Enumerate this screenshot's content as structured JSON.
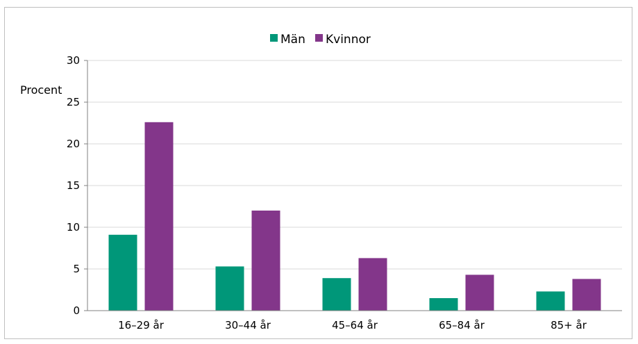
{
  "chart_data": {
    "type": "bar",
    "title": "",
    "xlabel": "",
    "ylabel": "Procent",
    "categories": [
      "16–29 år",
      "30–44 år",
      "45–64 år",
      "65–84 år",
      "85+ år"
    ],
    "series": [
      {
        "name": "Män",
        "color": "#009779",
        "values": [
          9.1,
          5.3,
          3.9,
          1.5,
          2.3
        ]
      },
      {
        "name": "Kvinnor",
        "color": "#83368A",
        "values": [
          22.6,
          12.0,
          6.3,
          4.3,
          3.8
        ]
      }
    ],
    "ylim": [
      0,
      30
    ],
    "yticks": [
      0,
      5,
      10,
      15,
      20,
      25,
      30
    ],
    "grid": true,
    "legend_position": "top-center"
  }
}
